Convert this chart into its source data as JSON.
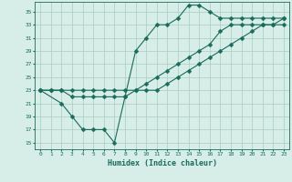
{
  "xlabel": "Humidex (Indice chaleur)",
  "bg_color": "#d6ede8",
  "line_color": "#1a6b5a",
  "grid_color": "#aaccbe",
  "xlim": [
    -0.5,
    23.5
  ],
  "ylim": [
    14,
    36.5
  ],
  "xticks": [
    0,
    1,
    2,
    3,
    4,
    5,
    6,
    7,
    8,
    9,
    10,
    11,
    12,
    13,
    14,
    15,
    16,
    17,
    18,
    19,
    20,
    21,
    22,
    23
  ],
  "yticks": [
    15,
    17,
    19,
    21,
    23,
    25,
    27,
    29,
    31,
    33,
    35
  ],
  "line1_x": [
    0,
    1,
    2,
    3,
    4,
    5,
    6,
    7,
    8,
    9,
    10,
    11,
    12,
    13,
    14,
    15,
    16,
    17,
    18,
    19,
    20,
    21,
    22,
    23
  ],
  "line1_y": [
    23,
    23,
    23,
    22,
    22,
    22,
    22,
    22,
    22,
    23,
    23,
    23,
    24,
    25,
    26,
    27,
    28,
    29,
    30,
    31,
    32,
    33,
    33,
    34
  ],
  "line2_x": [
    0,
    2,
    3,
    4,
    5,
    6,
    7,
    8,
    9,
    10,
    11,
    12,
    13,
    14,
    15,
    16,
    17,
    18,
    19,
    20,
    21,
    22,
    23
  ],
  "line2_y": [
    23,
    21,
    19,
    17,
    17,
    17,
    15,
    22,
    29,
    31,
    33,
    33,
    34,
    36,
    36,
    35,
    34,
    34,
    34,
    34,
    34,
    34,
    34
  ],
  "line3_x": [
    0,
    1,
    2,
    3,
    4,
    5,
    6,
    7,
    8,
    9,
    10,
    11,
    12,
    13,
    14,
    15,
    16,
    17,
    18,
    19,
    20,
    21,
    22,
    23
  ],
  "line3_y": [
    23,
    23,
    23,
    23,
    23,
    23,
    23,
    23,
    23,
    23,
    24,
    25,
    26,
    27,
    28,
    29,
    30,
    32,
    33,
    33,
    33,
    33,
    33,
    33
  ]
}
